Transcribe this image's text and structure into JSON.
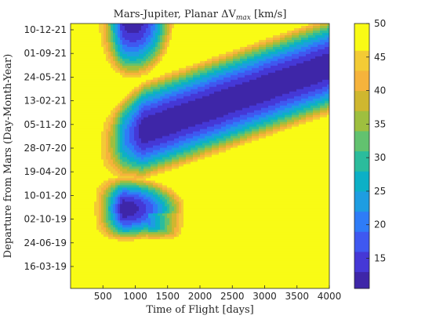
{
  "chart_data": {
    "type": "heatmap",
    "subtype": "filled-contour",
    "title": "Mars-Jupiter, Planar ΔV",
    "title_sub": "max",
    "title_unit": " [km/s]",
    "xlabel": "Time of Flight [days]",
    "ylabel": "Departure from Mars (Day-Month-Year)",
    "xlim": [
      0,
      4000
    ],
    "x_ticks": [
      500,
      1000,
      1500,
      2000,
      2500,
      3000,
      3500,
      4000
    ],
    "x_tick_labels": [
      "500",
      "1000",
      "1500",
      "2000",
      "2500",
      "3000",
      "3500",
      "4000"
    ],
    "y_ticks": [
      {
        "label": "10-12-21"
      },
      {
        "label": "01-09-21"
      },
      {
        "label": "24-05-21"
      },
      {
        "label": "13-02-21"
      },
      {
        "label": "05-11-20"
      },
      {
        "label": "28-07-20"
      },
      {
        "label": "19-04-20"
      },
      {
        "label": "10-01-20"
      },
      {
        "label": "02-10-19"
      },
      {
        "label": "24-06-19"
      },
      {
        "label": "16-03-19"
      }
    ],
    "colorbar": {
      "min": 10.5,
      "max": 50,
      "ticks": [
        15,
        20,
        25,
        30,
        35,
        40,
        45,
        50
      ],
      "tick_labels": [
        "15",
        "20",
        "25",
        "30",
        "35",
        "40",
        "45",
        "50"
      ],
      "levels": [
        {
          "from": 10.5,
          "to": 13,
          "color": "#3e26a8"
        },
        {
          "from": 13,
          "to": 16,
          "color": "#4538d6"
        },
        {
          "from": 16,
          "to": 19,
          "color": "#3f58f0"
        },
        {
          "from": 19,
          "to": 22,
          "color": "#2e7cf7"
        },
        {
          "from": 22,
          "to": 25,
          "color": "#1e9de1"
        },
        {
          "from": 25,
          "to": 28,
          "color": "#0cb0c6"
        },
        {
          "from": 28,
          "to": 31,
          "color": "#2bbc9c"
        },
        {
          "from": 31,
          "to": 34,
          "color": "#62c26f"
        },
        {
          "from": 34,
          "to": 37,
          "color": "#9ebf3f"
        },
        {
          "from": 37,
          "to": 40,
          "color": "#cfb72f"
        },
        {
          "from": 40,
          "to": 43,
          "color": "#f6b33c"
        },
        {
          "from": 43,
          "to": 46,
          "color": "#f3cb35"
        },
        {
          "from": 46,
          "to": 50,
          "color": "#f9fb15"
        }
      ]
    },
    "regions": [
      {
        "name": "upper-minimum",
        "value": 10.5,
        "tof_days": 1000,
        "departure": "10-12-21"
      },
      {
        "name": "middle-valley",
        "value": 10.5,
        "tof_days": 1100,
        "departure": "02-10-19"
      }
    ]
  }
}
